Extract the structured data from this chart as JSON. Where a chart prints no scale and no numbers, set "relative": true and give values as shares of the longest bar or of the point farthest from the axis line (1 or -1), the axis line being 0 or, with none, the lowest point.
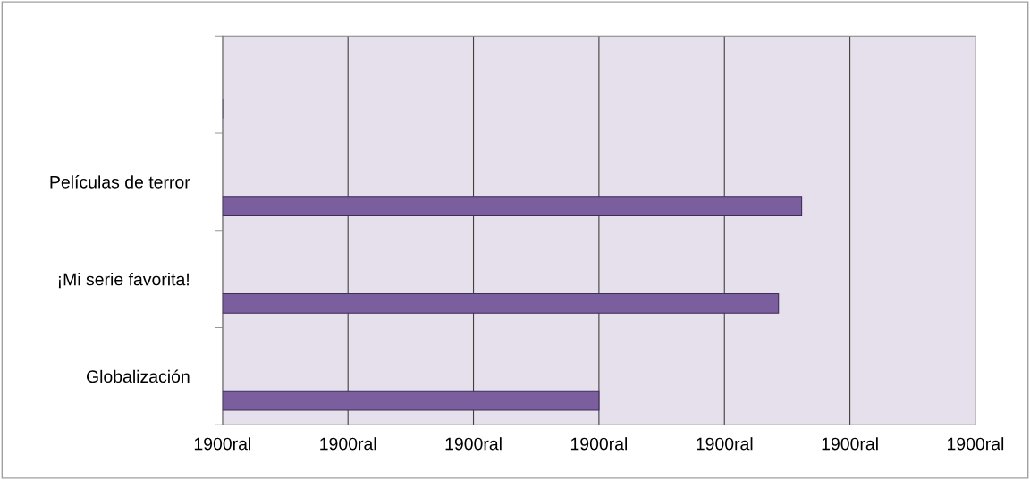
{
  "chart_data": {
    "type": "bar",
    "orientation": "horizontal",
    "relative": true,
    "categories": [
      null,
      "Películas de terror",
      "¡Mi serie favorita!",
      "Globalización"
    ],
    "values": [
      null,
      1,
      0.96,
      0.65
    ],
    "color": "#7b5e9e",
    "annotations": [
      "1900ral",
      "1900ral",
      "1900ral",
      "1900ral",
      "1900ral",
      "1900ral",
      "1900ral"
    ],
    "grid": "x",
    "legend": false
  }
}
